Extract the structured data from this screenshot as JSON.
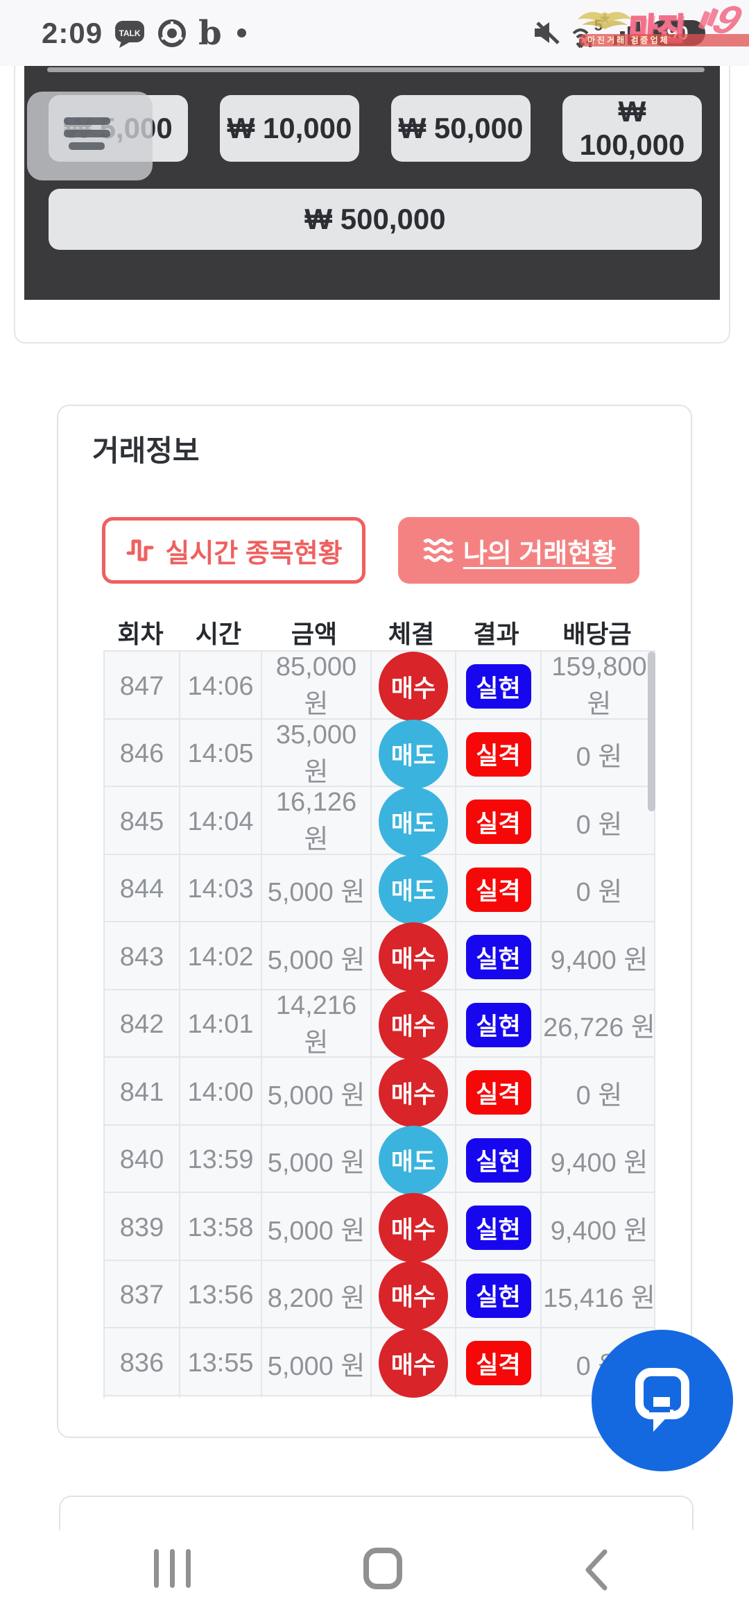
{
  "status_bar": {
    "time": "2:09",
    "talk_label": "TALK",
    "b_app_glyph": "b",
    "data_network_label": "5",
    "battery_level": "90"
  },
  "watermark": {
    "brand": "마진",
    "swoosh": "9",
    "banner_text": "마진거래 검증업체"
  },
  "amount_panel": {
    "quick_amounts": [
      "₩ 5,000",
      "₩ 10,000",
      "₩ 50,000",
      "₩ 100,000"
    ],
    "large_amount": "₩ 500,000"
  },
  "trade_info": {
    "title": "거래정보",
    "live_button_label": "실시간 종목현황",
    "my_button_label": "나의 거래현황",
    "table": {
      "headers": [
        "회차",
        "시간",
        "금액",
        "체결",
        "결과",
        "배당금"
      ],
      "badge_colors": {
        "buy": "#d92429",
        "sell": "#3ab4de",
        "win": "#1707ef",
        "lose": "#f70808"
      },
      "rows": [
        {
          "round": "847",
          "time": "14:06",
          "amount": "85,000 원",
          "side": "매수",
          "side_type": "buy",
          "result": "실현",
          "result_type": "win",
          "payout": "159,800 원"
        },
        {
          "round": "846",
          "time": "14:05",
          "amount": "35,000 원",
          "side": "매도",
          "side_type": "sell",
          "result": "실격",
          "result_type": "lose",
          "payout": "0 원"
        },
        {
          "round": "845",
          "time": "14:04",
          "amount": "16,126 원",
          "side": "매도",
          "side_type": "sell",
          "result": "실격",
          "result_type": "lose",
          "payout": "0 원"
        },
        {
          "round": "844",
          "time": "14:03",
          "amount": "5,000 원",
          "side": "매도",
          "side_type": "sell",
          "result": "실격",
          "result_type": "lose",
          "payout": "0 원"
        },
        {
          "round": "843",
          "time": "14:02",
          "amount": "5,000 원",
          "side": "매수",
          "side_type": "buy",
          "result": "실현",
          "result_type": "win",
          "payout": "9,400 원"
        },
        {
          "round": "842",
          "time": "14:01",
          "amount": "14,216 원",
          "side": "매수",
          "side_type": "buy",
          "result": "실현",
          "result_type": "win",
          "payout": "26,726 원"
        },
        {
          "round": "841",
          "time": "14:00",
          "amount": "5,000 원",
          "side": "매수",
          "side_type": "buy",
          "result": "실격",
          "result_type": "lose",
          "payout": "0 원"
        },
        {
          "round": "840",
          "time": "13:59",
          "amount": "5,000 원",
          "side": "매도",
          "side_type": "sell",
          "result": "실현",
          "result_type": "win",
          "payout": "9,400 원"
        },
        {
          "round": "839",
          "time": "13:58",
          "amount": "5,000 원",
          "side": "매수",
          "side_type": "buy",
          "result": "실현",
          "result_type": "win",
          "payout": "9,400 원"
        },
        {
          "round": "837",
          "time": "13:56",
          "amount": "8,200 원",
          "side": "매수",
          "side_type": "buy",
          "result": "실현",
          "result_type": "win",
          "payout": "15,416 원"
        },
        {
          "round": "836",
          "time": "13:55",
          "amount": "5,000 원",
          "side": "매수",
          "side_type": "buy",
          "result": "실격",
          "result_type": "lose",
          "payout": "0 원"
        }
      ]
    }
  },
  "chat_button": {
    "color": "#1569e0"
  },
  "colors": {
    "accent_coral": "#ef6060",
    "accent_salmon": "#f58282",
    "panel_dark": "#3a3a3c",
    "row_bg": "#f7f8fa"
  }
}
